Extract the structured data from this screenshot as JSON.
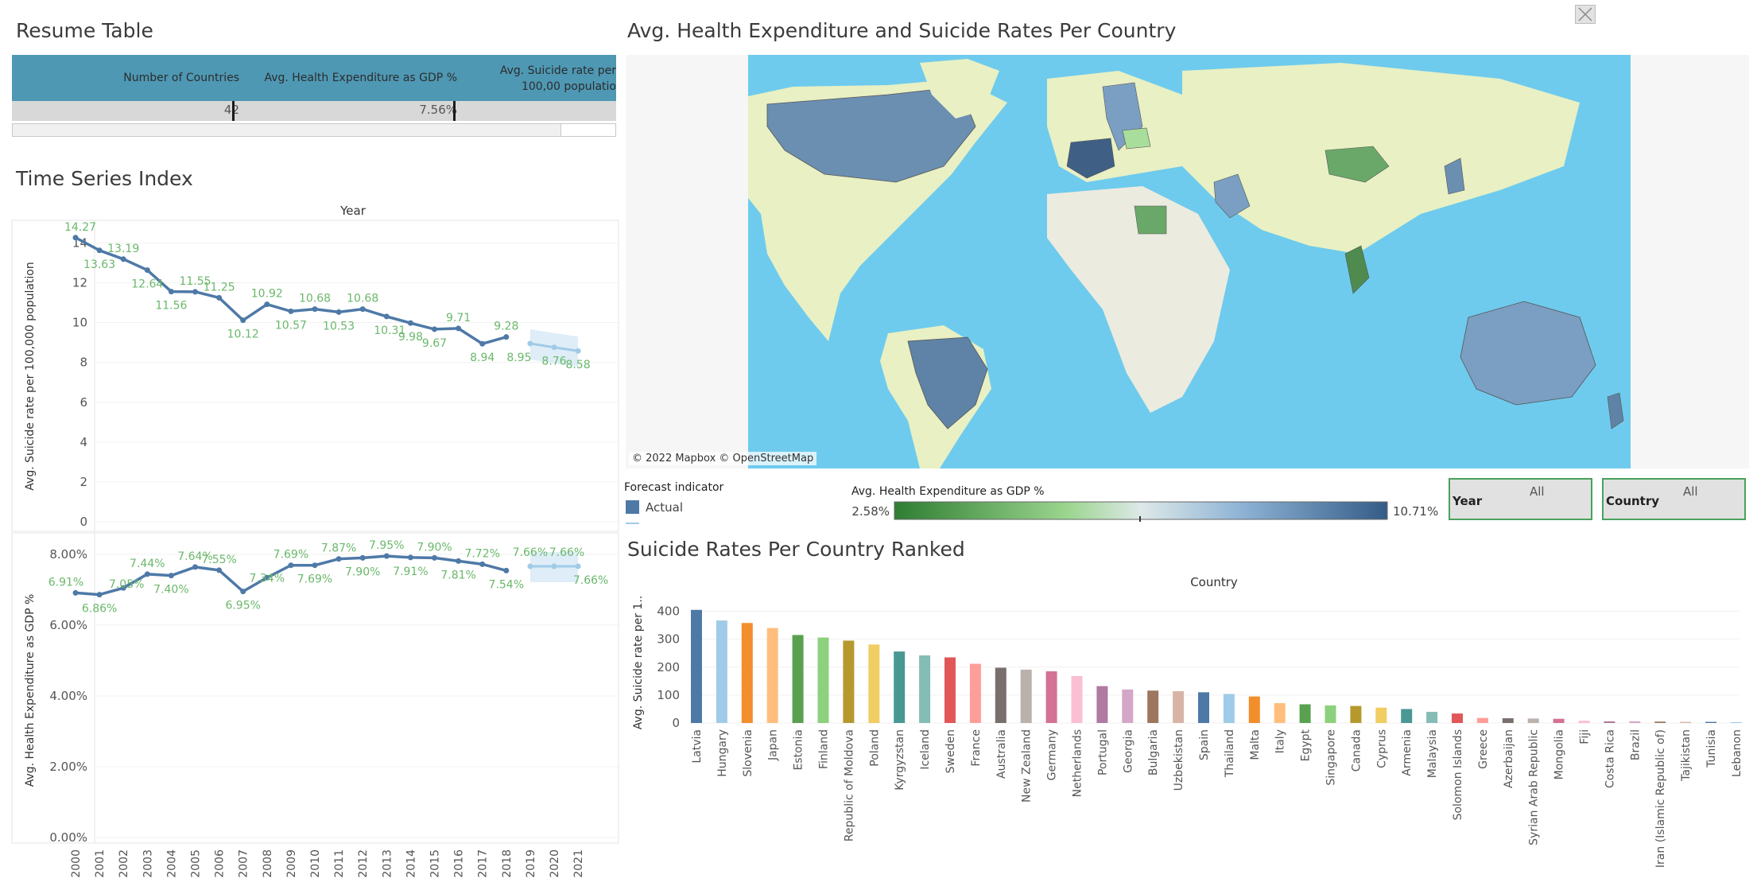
{
  "titles": {
    "resume": "Resume Table",
    "time_series": "Time Series Index",
    "map": "Avg. Health Expenditure and Suicide Rates Per Country",
    "ranked": "Suicide Rates Per Country Ranked"
  },
  "resume_table": {
    "headers": [
      "Number of Countries",
      "Avg. Health Expenditure as GDP %",
      "Avg. Suicide rate per 100,00 populatio"
    ],
    "values": [
      "42",
      "7.56%",
      ""
    ]
  },
  "map": {
    "attribution": "© 2022 Mapbox © OpenStreetMap"
  },
  "legend": {
    "forecast_title": "Forecast indicator",
    "forecast_items": [
      "Actual"
    ],
    "color_title": "Avg. Health Expenditure as GDP %",
    "color_min": "2.58%",
    "color_max": "10.71%"
  },
  "filters": {
    "year_label": "Year",
    "year_value": "All",
    "country_label": "Country",
    "country_value": "All"
  },
  "colors": {
    "header": "#4e98b4",
    "line": "#4e79a7",
    "forecast": "#a0cbe8",
    "label_green": "#6bb86b",
    "ocean": "#6ecbed",
    "land": "#ecebdf"
  },
  "chart_data": [
    {
      "type": "line",
      "title": "",
      "xlabel": "Year",
      "ylabel": "Avg. Suicide rate per 100,000 population",
      "ylim": [
        0,
        14.5
      ],
      "yticks": [
        "0",
        "2",
        "4",
        "6",
        "8",
        "10",
        "12",
        "14"
      ],
      "x": [
        2000,
        2001,
        2002,
        2003,
        2004,
        2005,
        2006,
        2007,
        2008,
        2009,
        2010,
        2011,
        2012,
        2013,
        2014,
        2015,
        2016,
        2017,
        2018,
        2019,
        2020,
        2021
      ],
      "values": [
        14.27,
        13.63,
        13.19,
        12.64,
        11.56,
        11.55,
        11.25,
        10.12,
        10.92,
        10.57,
        10.68,
        10.53,
        10.68,
        10.31,
        9.98,
        9.67,
        9.71,
        8.94,
        9.28,
        8.95,
        8.76,
        8.58
      ],
      "labels": [
        "14.27",
        "13.63",
        "13.19",
        "12.64",
        "11.56",
        "11.55",
        "11.25",
        "10.12",
        "10.92",
        "10.57",
        "10.68",
        "10.53",
        "10.68",
        "10.31",
        "9.98",
        "9.67",
        "9.71",
        "8.94",
        "9.28",
        "8.95",
        "8.76",
        "8.58"
      ],
      "forecast_from": 2019
    },
    {
      "type": "line",
      "title": "",
      "xlabel": "",
      "ylabel": "Avg. Health Expenditure as GDP %",
      "ylim": [
        0,
        8.2
      ],
      "yticks": [
        "0.00%",
        "2.00%",
        "4.00%",
        "6.00%",
        "8.00%"
      ],
      "x": [
        2000,
        2001,
        2002,
        2003,
        2004,
        2005,
        2006,
        2007,
        2008,
        2009,
        2010,
        2011,
        2012,
        2013,
        2014,
        2015,
        2016,
        2017,
        2018,
        2019,
        2020,
        2021
      ],
      "values": [
        6.91,
        6.86,
        7.05,
        7.44,
        7.4,
        7.64,
        7.55,
        6.95,
        7.34,
        7.69,
        7.69,
        7.87,
        7.9,
        7.95,
        7.91,
        7.9,
        7.81,
        7.72,
        7.54,
        7.66,
        7.66,
        7.66
      ],
      "labels": [
        "6.91%",
        "6.86%",
        "7.05%",
        "7.44%",
        "7.40%",
        "7.64%",
        "7.55%",
        "6.95%",
        "7.34%",
        "7.69%",
        "7.69%",
        "7.87%",
        "7.90%",
        "7.95%",
        "7.91%",
        "7.90%",
        "7.81%",
        "7.72%",
        "7.54%",
        "7.66%",
        "7.66%",
        "7.66%"
      ],
      "x_tick_labels": [
        "2000",
        "2001",
        "2002",
        "2003",
        "2004",
        "2005",
        "2006",
        "2007",
        "2008",
        "2009",
        "2010",
        "2011",
        "2012",
        "2013",
        "2014",
        "2015",
        "2016",
        "2017",
        "2018",
        "2019",
        "2020",
        "2021"
      ],
      "forecast_from": 2019
    },
    {
      "type": "bar",
      "title": "",
      "xlabel": "Country",
      "ylabel": "Avg. Suicide rate per 1..",
      "ylim": [
        0,
        430
      ],
      "yticks": [
        "0",
        "50",
        "100",
        "150",
        "200",
        "250",
        "300",
        "350",
        "400"
      ],
      "categories": [
        "Latvia",
        "Hungary",
        "Slovenia",
        "Japan",
        "Estonia",
        "Finland",
        "Republic of Moldova",
        "Poland",
        "Kyrgyzstan",
        "Iceland",
        "Sweden",
        "France",
        "Australia",
        "New Zealand",
        "Germany",
        "Netherlands",
        "Portugal",
        "Georgia",
        "Bulgaria",
        "Uzbekistan",
        "Spain",
        "Thailand",
        "Malta",
        "Italy",
        "Egypt",
        "Singapore",
        "Canada",
        "Cyprus",
        "Armenia",
        "Malaysia",
        "Solomon Islands",
        "Greece",
        "Azerbaijan",
        "Syrian Arab Republic",
        "Mongolia",
        "Fiji",
        "Costa Rica",
        "Brazil",
        "Iran (Islamic Republic of)",
        "Tajikistan",
        "Tunisia",
        "Lebanon"
      ],
      "values": [
        405,
        367,
        358,
        340,
        315,
        306,
        295,
        281,
        256,
        242,
        235,
        212,
        198,
        191,
        185,
        168,
        132,
        120,
        116,
        114,
        110,
        104,
        95,
        71,
        67,
        63,
        61,
        55,
        50,
        40,
        34,
        18,
        17,
        16,
        15,
        8,
        6,
        6,
        5,
        4,
        4,
        3
      ],
      "bar_colors": [
        "#4e79a7",
        "#a0cbe8",
        "#f28e2b",
        "#ffbe7d",
        "#59a14f",
        "#8cd17d",
        "#b6992d",
        "#f1ce63",
        "#499894",
        "#86bcb6",
        "#e15759",
        "#ff9d9a",
        "#79706e",
        "#bab0ac",
        "#d37295",
        "#fabfd2",
        "#b07aa1",
        "#d4a6c8",
        "#9d7660",
        "#d7b5a6",
        "#4e79a7",
        "#a0cbe8",
        "#f28e2b",
        "#ffbe7d",
        "#59a14f",
        "#8cd17d",
        "#b6992d",
        "#f1ce63",
        "#499894",
        "#86bcb6",
        "#e15759",
        "#ff9d9a",
        "#79706e",
        "#bab0ac",
        "#d37295",
        "#fabfd2",
        "#b07aa1",
        "#d4a6c8",
        "#9d7660",
        "#d7b5a6",
        "#4e79a7",
        "#a0cbe8"
      ]
    }
  ]
}
